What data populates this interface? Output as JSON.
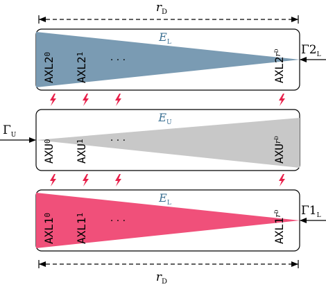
{
  "colors": {
    "steel": "#7a9bb3",
    "gray": "#c8c8c8",
    "pink": "#f0507a",
    "bolt": "#e8204a",
    "energy_label": "#3a6f92",
    "stroke": "#000000"
  },
  "dimension_top": {
    "symbol": "r",
    "subscript": "D"
  },
  "dimension_bottom": {
    "symbol": "r",
    "subscript": "D"
  },
  "blocks": [
    {
      "id": "axl2",
      "fill_key": "steel",
      "wedge": "narrowing-right",
      "energy": {
        "symbol": "E",
        "subscript": "L"
      },
      "units": [
        {
          "base": "AXL2",
          "sub": "0"
        },
        {
          "base": "AXL2",
          "sub": "1"
        },
        {
          "base": "AXL2",
          "sub": "r",
          "subsub": "D"
        }
      ],
      "dots": "· · ·",
      "flux": {
        "symbol": "Γ2",
        "subscript": "L",
        "side": "right"
      }
    },
    {
      "id": "axu",
      "fill_key": "gray",
      "wedge": "widening-right",
      "energy": {
        "symbol": "E",
        "subscript": "U"
      },
      "units": [
        {
          "base": "AXU",
          "sub": "0"
        },
        {
          "base": "AXU",
          "sub": "1"
        },
        {
          "base": "AXU",
          "sub": "r",
          "subsub": "D"
        }
      ],
      "dots": "· · ·",
      "flux": {
        "symbol": "Γ",
        "subscript": "U",
        "side": "left"
      }
    },
    {
      "id": "axl1",
      "fill_key": "pink",
      "wedge": "narrowing-right",
      "energy": {
        "symbol": "E",
        "subscript": "L"
      },
      "units": [
        {
          "base": "AXL1",
          "sub": "0"
        },
        {
          "base": "AXL1",
          "sub": "1"
        },
        {
          "base": "AXL1",
          "sub": "r",
          "subsub": "D"
        }
      ],
      "dots": "· · ·",
      "flux": {
        "symbol": "Γ1",
        "subscript": "L",
        "side": "right"
      }
    }
  ],
  "bolt_rows": 2,
  "bolts_per_row": 4
}
